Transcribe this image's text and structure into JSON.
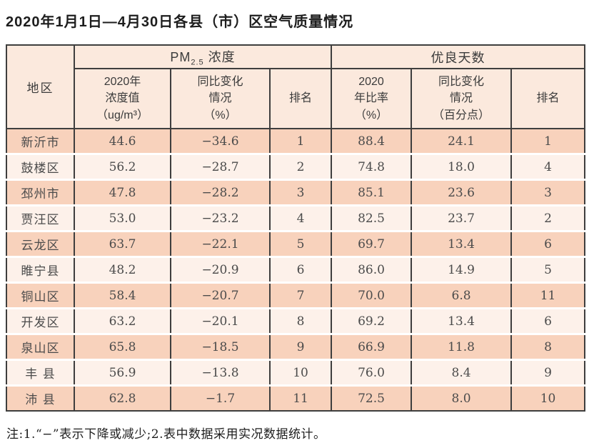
{
  "title": "2020年1月1日—4月30日各县（市）区空气质量情况",
  "note": "注:1.“−”表示下降或减少;2.表中数据采用实况数据统计。",
  "colors": {
    "border_dark": "#3e3e3e",
    "header_bg": "#fbe9dd",
    "row_odd_bg": "#f8d2bc",
    "row_even_bg": "#fdf1ea",
    "cell_text": "#4b4b4b",
    "title_text": "#1d1d1d"
  },
  "header_display": {
    "region": "地区",
    "pm_group": {
      "pre": "PM",
      "sub": "2.5",
      "post": " 浓度"
    },
    "good_group": "优良天数",
    "sub_headers": [
      "2020年\n浓度值\n（ug/m³）",
      "同比变化\n情况\n（%）",
      "排名",
      "2020\n年比率\n（%）",
      "同比变化\n情况\n（百分点）",
      "排名"
    ]
  },
  "chart_data": {
    "type": "table",
    "title": "2020年1月1日—4月30日各县（市）区空气质量情况",
    "row_header": "地区",
    "column_groups": [
      {
        "label": "PM2.5浓度",
        "columns": [
          "2020年浓度值（ug/m³）",
          "同比变化情况（%）",
          "排名"
        ]
      },
      {
        "label": "优良天数",
        "columns": [
          "2020年比率（%）",
          "同比变化情况（百分点）",
          "排名"
        ]
      }
    ],
    "rows": [
      {
        "region": "新沂市",
        "pm_value": "44.6",
        "pm_change": "−34.6",
        "pm_rank": "1",
        "good_ratio": "88.4",
        "good_change": "24.1",
        "good_rank": "1"
      },
      {
        "region": "鼓楼区",
        "pm_value": "56.2",
        "pm_change": "−28.7",
        "pm_rank": "2",
        "good_ratio": "74.8",
        "good_change": "18.0",
        "good_rank": "4"
      },
      {
        "region": "邳州市",
        "pm_value": "47.8",
        "pm_change": "−28.2",
        "pm_rank": "3",
        "good_ratio": "85.1",
        "good_change": "23.6",
        "good_rank": "3"
      },
      {
        "region": "贾汪区",
        "pm_value": "53.0",
        "pm_change": "−23.2",
        "pm_rank": "4",
        "good_ratio": "82.5",
        "good_change": "23.7",
        "good_rank": "2"
      },
      {
        "region": "云龙区",
        "pm_value": "63.7",
        "pm_change": "−22.1",
        "pm_rank": "5",
        "good_ratio": "69.7",
        "good_change": "13.4",
        "good_rank": "6"
      },
      {
        "region": "睢宁县",
        "pm_value": "48.2",
        "pm_change": "−20.9",
        "pm_rank": "6",
        "good_ratio": "86.0",
        "good_change": "14.9",
        "good_rank": "5"
      },
      {
        "region": "铜山区",
        "pm_value": "58.4",
        "pm_change": "−20.7",
        "pm_rank": "7",
        "good_ratio": "70.0",
        "good_change": "6.8",
        "good_rank": "11"
      },
      {
        "region": "开发区",
        "pm_value": "63.2",
        "pm_change": "−20.1",
        "pm_rank": "8",
        "good_ratio": "69.2",
        "good_change": "13.4",
        "good_rank": "6"
      },
      {
        "region": "泉山区",
        "pm_value": "65.8",
        "pm_change": "−18.5",
        "pm_rank": "9",
        "good_ratio": "66.9",
        "good_change": "11.8",
        "good_rank": "8"
      },
      {
        "region": "丰 县",
        "pm_value": "56.9",
        "pm_change": "−13.8",
        "pm_rank": "10",
        "good_ratio": "76.0",
        "good_change": "8.4",
        "good_rank": "9"
      },
      {
        "region": "沛 县",
        "pm_value": "62.8",
        "pm_change": "−1.7",
        "pm_rank": "11",
        "good_ratio": "72.5",
        "good_change": "8.0",
        "good_rank": "10"
      }
    ]
  }
}
